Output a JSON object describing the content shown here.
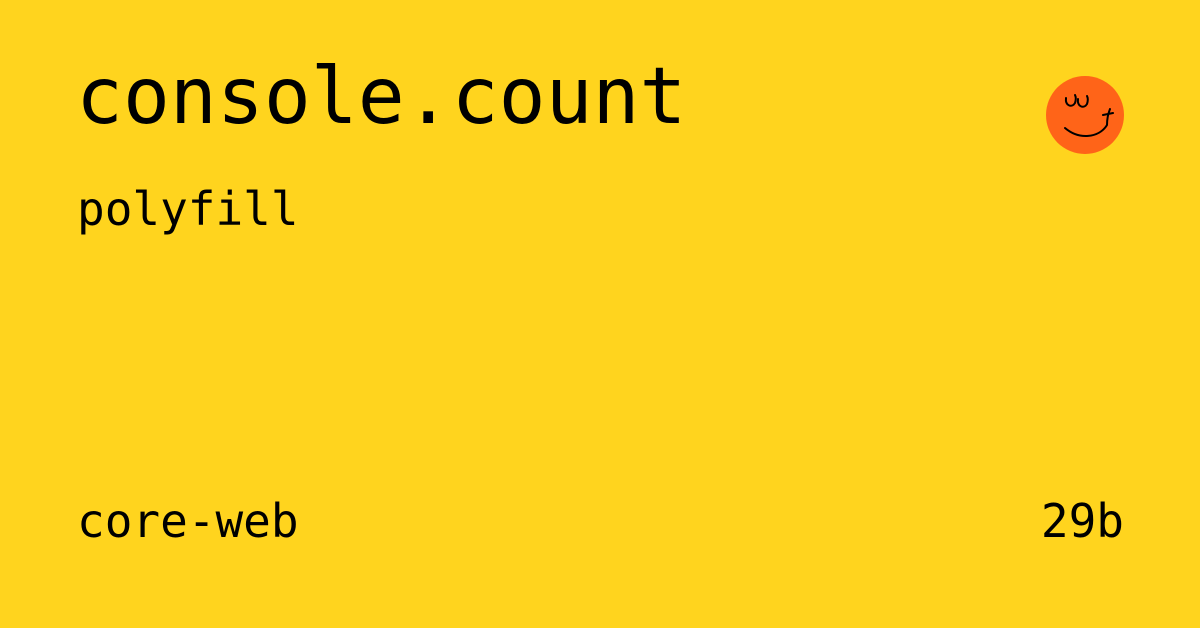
{
  "card": {
    "title": "console.count",
    "subtitle": "polyfill",
    "collection": "core-web",
    "size": "29b",
    "logo_icon": "smiley-face-icon"
  },
  "colors": {
    "background": "#FFD41E",
    "text": "#000000",
    "logo_fill": "#FF6418"
  }
}
